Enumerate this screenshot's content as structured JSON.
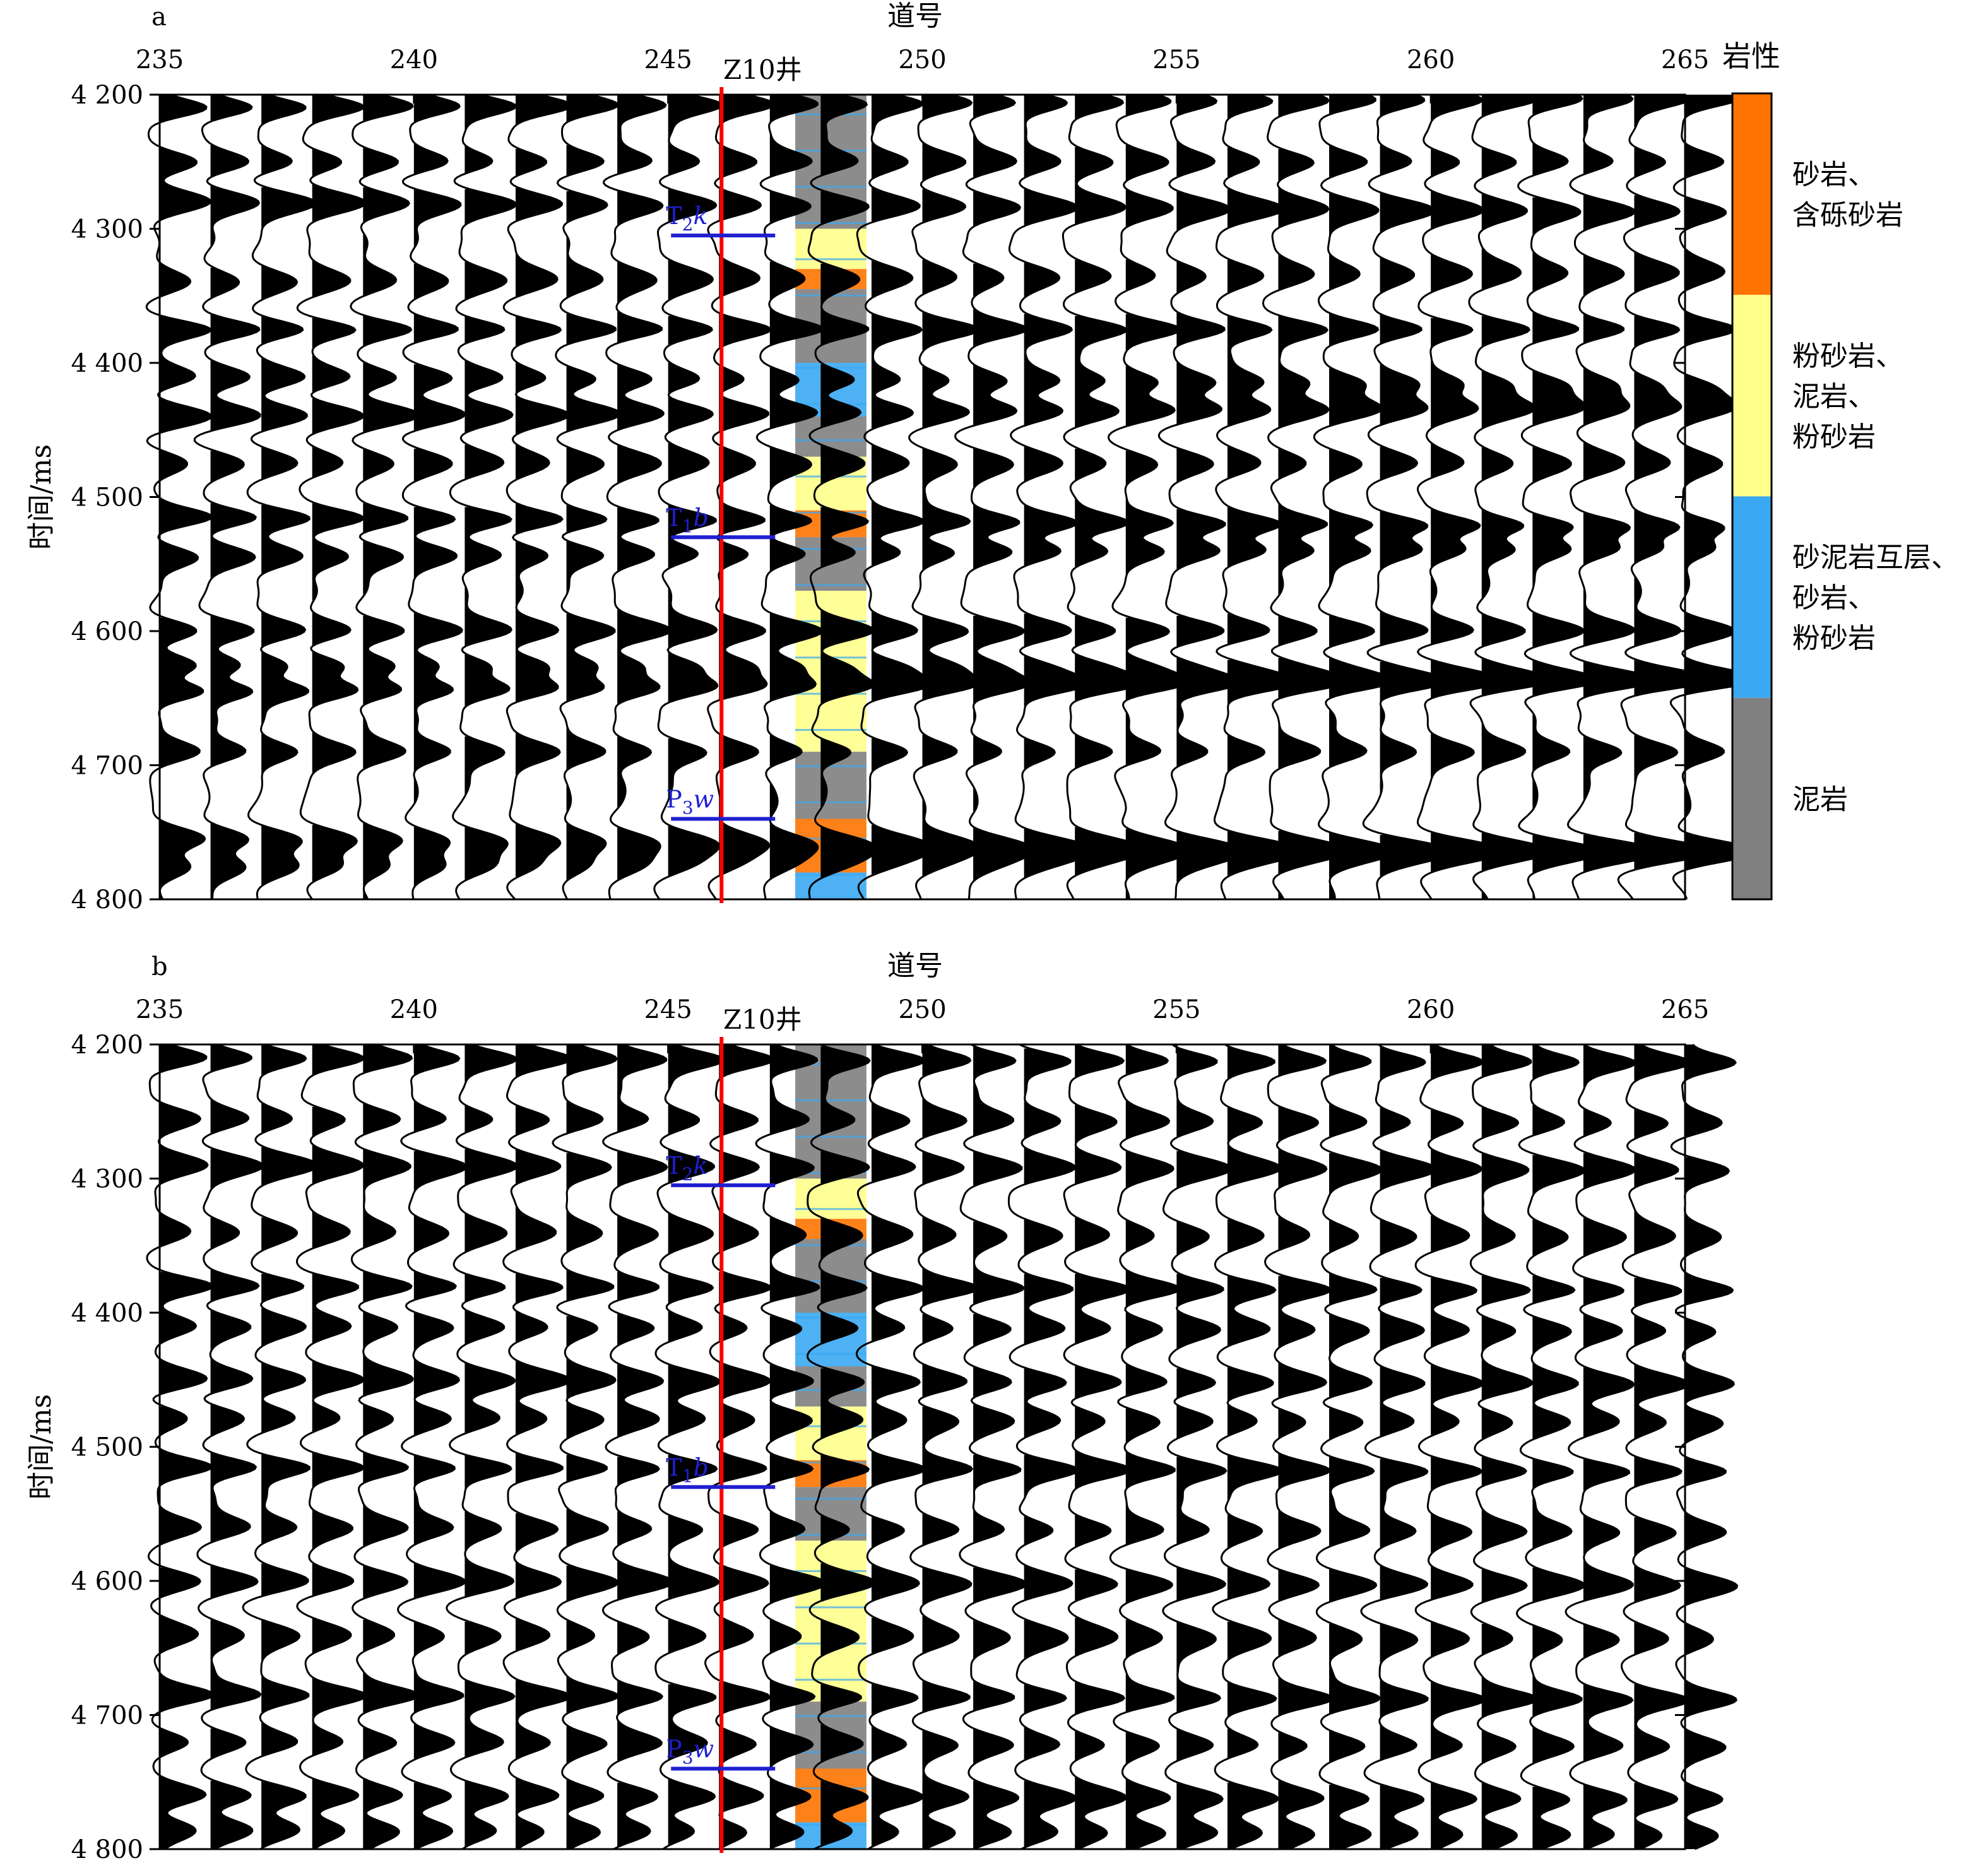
{
  "legend": {
    "title": "岩性",
    "entries": [
      {
        "lines": [
          "砂岩、",
          "含砾砂岩"
        ],
        "color": "#ff7300"
      },
      {
        "lines": [
          "粉砂岩、",
          "泥岩、",
          "粉砂岩"
        ],
        "color": "#ffff8c"
      },
      {
        "lines": [
          "砂泥岩互层、",
          "砂岩、",
          "粉砂岩"
        ],
        "color": "#3aa8f2"
      },
      {
        "lines": [
          "泥岩"
        ],
        "color": "#808080"
      }
    ]
  },
  "colors": {
    "well_line": "#ff0000",
    "horizon": "#1f1fd0",
    "trace_fill": "#000000"
  },
  "well": {
    "name": "Z10井",
    "trace": 247.0
  },
  "lithology_column": [
    {
      "top": 4200,
      "bottom": 4300,
      "lith": "泥岩"
    },
    {
      "top": 4300,
      "bottom": 4330,
      "lith": "粉砂岩"
    },
    {
      "top": 4330,
      "bottom": 4345,
      "lith": "砂岩"
    },
    {
      "top": 4345,
      "bottom": 4400,
      "lith": "泥岩"
    },
    {
      "top": 4400,
      "bottom": 4440,
      "lith": "砂泥岩互层"
    },
    {
      "top": 4440,
      "bottom": 4470,
      "lith": "泥岩"
    },
    {
      "top": 4470,
      "bottom": 4510,
      "lith": "粉砂岩"
    },
    {
      "top": 4510,
      "bottom": 4530,
      "lith": "砂岩"
    },
    {
      "top": 4530,
      "bottom": 4570,
      "lith": "泥岩"
    },
    {
      "top": 4570,
      "bottom": 4690,
      "lith": "粉砂岩"
    },
    {
      "top": 4690,
      "bottom": 4740,
      "lith": "泥岩"
    },
    {
      "top": 4740,
      "bottom": 4780,
      "lith": "砂岩"
    },
    {
      "top": 4780,
      "bottom": 4800,
      "lith": "砂泥岩互层"
    }
  ],
  "chart_data": [
    {
      "type": "seismic-wiggle",
      "panel": "a",
      "title": "道号",
      "ylabel": "时间/ms",
      "xlim": [
        235,
        265
      ],
      "ylim": [
        4200,
        4800
      ],
      "x_ticks": [
        235,
        240,
        245,
        250,
        255,
        260,
        265
      ],
      "x_tick_labels": [
        "235",
        "240",
        "245",
        "250",
        "255",
        "260",
        "265"
      ],
      "y_ticks": [
        4200,
        4300,
        4400,
        4500,
        4600,
        4700,
        4800
      ],
      "y_tick_labels": [
        "4 200",
        "4 300",
        "4 400",
        "4 500",
        "4 600",
        "4 700",
        "4 800"
      ],
      "traces": [
        235,
        236,
        237,
        238,
        239,
        240,
        241,
        242,
        243,
        244,
        245,
        246,
        247,
        248,
        249,
        250,
        251,
        252,
        253,
        254,
        255,
        256,
        257,
        258,
        259,
        260,
        261,
        262,
        263,
        264,
        265
      ],
      "reflector_times": [
        4210,
        4250,
        4280,
        4340,
        4375,
        4410,
        4440,
        4475,
        4515,
        4545,
        4600,
        4625,
        4645,
        4690,
        4755,
        4775
      ],
      "horizons": [
        {
          "label_base": "T",
          "label_sub": "2",
          "label_italic": "k",
          "time": 4305
        },
        {
          "label_base": "T",
          "label_sub": "1",
          "label_italic": "b",
          "time": 4530
        },
        {
          "label_base": "P",
          "label_sub": "3",
          "label_italic": "w",
          "time": 4740
        }
      ]
    },
    {
      "type": "seismic-wiggle",
      "panel": "b",
      "title": "道号",
      "ylabel": "时间/ms",
      "xlim": [
        235,
        265
      ],
      "ylim": [
        4200,
        4800
      ],
      "x_ticks": [
        235,
        240,
        245,
        250,
        255,
        260,
        265
      ],
      "x_tick_labels": [
        "235",
        "240",
        "245",
        "250",
        "255",
        "260",
        "265"
      ],
      "y_ticks": [
        4200,
        4300,
        4400,
        4500,
        4600,
        4700,
        4800
      ],
      "y_tick_labels": [
        "4 200",
        "4 300",
        "4 400",
        "4 500",
        "4 600",
        "4 700",
        "4 800"
      ],
      "traces": [
        235,
        236,
        237,
        238,
        239,
        240,
        241,
        242,
        243,
        244,
        245,
        246,
        247,
        248,
        249,
        250,
        251,
        252,
        253,
        254,
        255,
        256,
        257,
        258,
        259,
        260,
        261,
        262,
        263,
        264,
        265
      ],
      "reflector_times": [
        4210,
        4255,
        4290,
        4340,
        4380,
        4410,
        4450,
        4478,
        4515,
        4560,
        4600,
        4640,
        4685,
        4720,
        4760,
        4785
      ],
      "horizons": [
        {
          "label_base": "T",
          "label_sub": "2",
          "label_italic": "k",
          "time": 4305
        },
        {
          "label_base": "T",
          "label_sub": "1",
          "label_italic": "b",
          "time": 4530
        },
        {
          "label_base": "P",
          "label_sub": "3",
          "label_italic": "w",
          "time": 4740
        }
      ]
    }
  ]
}
